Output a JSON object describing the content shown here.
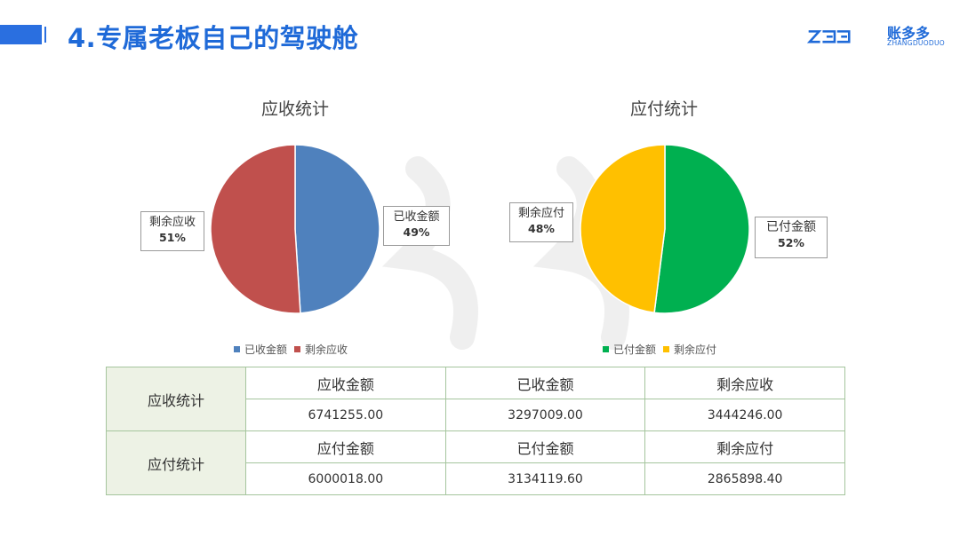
{
  "header": {
    "title": "4.专属老板自己的驾驶舱",
    "logo_cn": "账多多",
    "logo_en": "ZHANGDUODUO"
  },
  "colors": {
    "blue": "#4f81bd",
    "red": "#c0504d",
    "green": "#00b050",
    "yellow": "#ffc000",
    "accent": "#1f6ad8"
  },
  "chart_data": [
    {
      "type": "pie",
      "title": "应收统计",
      "slices": [
        {
          "label": "已收金额",
          "value": 49,
          "color": "#4f81bd"
        },
        {
          "label": "剩余应收",
          "value": 51,
          "color": "#c0504d"
        }
      ],
      "data_labels": [
        "49%",
        "51%"
      ],
      "legend": [
        "已收金额",
        "剩余应收"
      ],
      "legend_position": "bottom"
    },
    {
      "type": "pie",
      "title": "应付统计",
      "slices": [
        {
          "label": "已付金额",
          "value": 52,
          "color": "#00b050"
        },
        {
          "label": "剩余应付",
          "value": 48,
          "color": "#ffc000"
        }
      ],
      "data_labels": [
        "52%",
        "48%"
      ],
      "legend": [
        "已付金额",
        "剩余应付"
      ],
      "legend_position": "bottom"
    }
  ],
  "table": {
    "receivable": {
      "row_label": "应收统计",
      "headers": [
        "应收金额",
        "已收金额",
        "剩余应收"
      ],
      "values": [
        "6741255.00",
        "3297009.00",
        "3444246.00"
      ]
    },
    "payable": {
      "row_label": "应付统计",
      "headers": [
        "应付金额",
        "已付金额",
        "剩余应付"
      ],
      "values": [
        "6000018.00",
        "3134119.60",
        "2865898.40"
      ]
    }
  }
}
